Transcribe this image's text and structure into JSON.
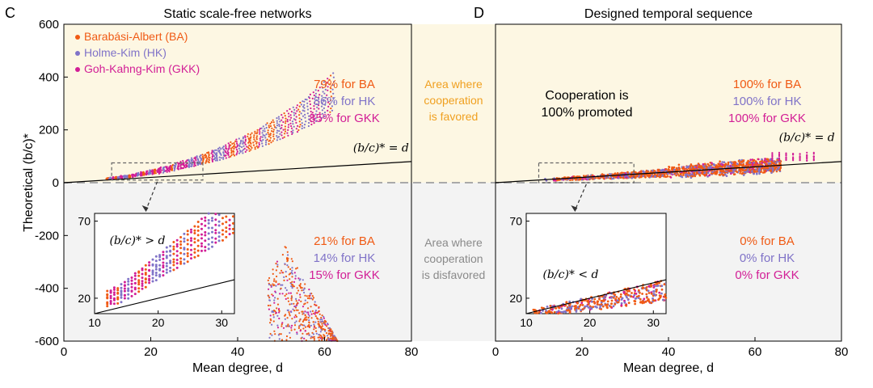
{
  "colors": {
    "ba": "#f05a14",
    "hk": "#8073c8",
    "gkk": "#d21e96",
    "favored_bg": "#fdf7e3",
    "disfavored_bg": "#f3f3f3",
    "favored_text": "#f0a020",
    "disfavored_text": "#8a8a8a",
    "line": "#000000",
    "dashed": "#a9a9a9"
  },
  "shared": {
    "ylabel": "Theoretical (b/c)*",
    "middle_favored": [
      "Area where",
      "cooperation",
      "is favored"
    ],
    "middle_disfavored": [
      "Area where",
      "cooperation",
      "is disfavored"
    ]
  },
  "chart_data": [
    {
      "type": "scatter",
      "panel_letter": "C",
      "title": "Static scale-free networks",
      "xlabel": "Mean degree, d",
      "ylabel": "Theoretical (b/c)*",
      "xlim": [
        0,
        80
      ],
      "ylim": [
        -600,
        600
      ],
      "xticks": [
        "0",
        "20",
        "40",
        "60",
        "80"
      ],
      "yticks": [
        "-600",
        "-400",
        "-200",
        "0",
        "200",
        "400",
        "600"
      ],
      "legend_position": "top-left",
      "series": [
        {
          "name": "Barabási-Albert (BA)",
          "key": "ba"
        },
        {
          "name": "Holme-Kim (HK)",
          "key": "hk"
        },
        {
          "name": "Goh-Kahng-Kim (GKK)",
          "key": "gkk"
        }
      ],
      "line_label": "(b/c)* = d",
      "favored_stats": [
        "79% for BA",
        "86% for HK",
        "85% for GKK"
      ],
      "disfavored_stats": [
        "21% for BA",
        "14% for HK",
        "15% for GKK"
      ],
      "inset": {
        "xlim": [
          10,
          32
        ],
        "ylim": [
          10,
          75
        ],
        "xticks": [
          "10",
          "20",
          "30"
        ],
        "yticks": [
          "20",
          "70"
        ],
        "label": "(b/c)* > d"
      },
      "zoom_box": {
        "x": [
          11,
          32
        ],
        "y": [
          10,
          75
        ]
      }
    },
    {
      "type": "scatter",
      "panel_letter": "D",
      "title": "Designed temporal sequence",
      "xlabel": "Mean degree, d",
      "xlim": [
        0,
        80
      ],
      "ylim": [
        -600,
        600
      ],
      "xticks": [
        "0",
        "20",
        "40",
        "60",
        "80"
      ],
      "line_label": "(b/c)* = d",
      "headline": [
        "Cooperation is",
        "100% promoted"
      ],
      "favored_stats": [
        "100% for BA",
        "100% for HK",
        "100% for GKK"
      ],
      "disfavored_stats": [
        "0% for BA",
        "0% for HK",
        "0% for GKK"
      ],
      "inset": {
        "xlim": [
          10,
          32
        ],
        "ylim": [
          10,
          75
        ],
        "xticks": [
          "10",
          "20",
          "30"
        ],
        "yticks": [
          "20",
          "70"
        ],
        "label": "(b/c)* < d"
      },
      "zoom_box": {
        "x": [
          10,
          32
        ],
        "y": [
          0,
          75
        ]
      }
    }
  ]
}
